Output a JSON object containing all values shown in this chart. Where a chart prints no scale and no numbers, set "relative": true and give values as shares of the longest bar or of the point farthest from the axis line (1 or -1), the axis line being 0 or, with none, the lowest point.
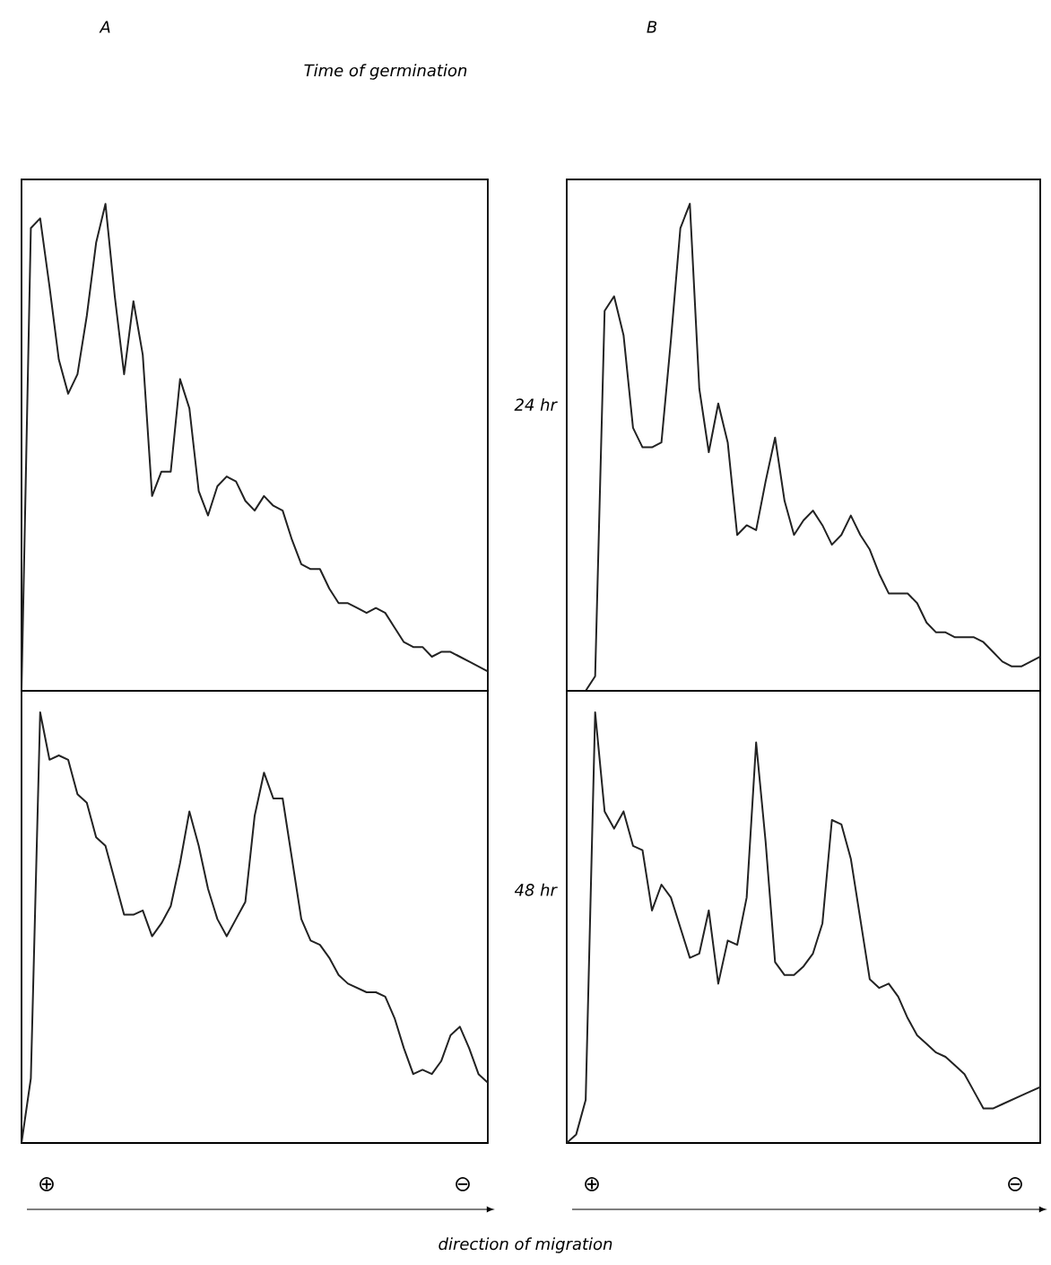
{
  "chart_data": [
    {
      "type": "line",
      "relative": true,
      "title": "A",
      "annotations": [
        "Time of germination"
      ],
      "color": "#222222",
      "categories": [
        null,
        null,
        null,
        null,
        null,
        null,
        null,
        null,
        null,
        null,
        null,
        null,
        null,
        null,
        null,
        null,
        null,
        null,
        null,
        null,
        null,
        null,
        null,
        null,
        null,
        null,
        null,
        null,
        null,
        null,
        null,
        null,
        null,
        null,
        null,
        null,
        null,
        null,
        null,
        null,
        null,
        null,
        null,
        null,
        null,
        null,
        null,
        null,
        null,
        null,
        null
      ],
      "values": [
        0,
        0.95,
        0.97,
        0.83,
        0.68,
        0.61,
        0.65,
        0.77,
        0.92,
        1.0,
        0.81,
        0.65,
        0.8,
        0.69,
        0.4,
        0.45,
        0.45,
        0.64,
        0.58,
        0.41,
        0.36,
        0.42,
        0.44,
        0.43,
        0.39,
        0.37,
        0.4,
        0.38,
        0.37,
        0.31,
        0.26,
        0.25,
        0.25,
        0.21,
        0.18,
        0.18,
        0.17,
        0.16,
        0.17,
        0.16,
        0.13,
        0.1,
        0.09,
        0.09,
        0.07,
        0.08,
        0.08,
        0.07,
        0.06,
        0.05,
        0.04
      ]
    },
    {
      "type": "line",
      "relative": true,
      "title": "B",
      "ylabel": "24 hr",
      "color": "#222222",
      "categories": [
        null,
        null,
        null,
        null,
        null,
        null,
        null,
        null,
        null,
        null,
        null,
        null,
        null,
        null,
        null,
        null,
        null,
        null,
        null,
        null,
        null,
        null,
        null,
        null,
        null,
        null,
        null,
        null,
        null,
        null,
        null,
        null,
        null,
        null,
        null,
        null,
        null,
        null,
        null,
        null,
        null,
        null,
        null,
        null,
        null,
        null,
        null,
        null,
        null,
        null,
        null
      ],
      "values": [
        0,
        0,
        0,
        0.03,
        0.78,
        0.81,
        0.73,
        0.54,
        0.5,
        0.5,
        0.51,
        0.72,
        0.95,
        1.0,
        0.62,
        0.49,
        0.59,
        0.51,
        0.32,
        0.34,
        0.33,
        0.43,
        0.52,
        0.39,
        0.32,
        0.35,
        0.37,
        0.34,
        0.3,
        0.32,
        0.36,
        0.32,
        0.29,
        0.24,
        0.2,
        0.2,
        0.2,
        0.18,
        0.14,
        0.12,
        0.12,
        0.11,
        0.11,
        0.11,
        0.1,
        0.08,
        0.06,
        0.05,
        0.05,
        0.06,
        0.07
      ]
    },
    {
      "type": "line",
      "relative": true,
      "xlabel": "direction of migration",
      "annotations": [
        "⊕",
        "⊖"
      ],
      "color": "#222222",
      "categories": [
        null,
        null,
        null,
        null,
        null,
        null,
        null,
        null,
        null,
        null,
        null,
        null,
        null,
        null,
        null,
        null,
        null,
        null,
        null,
        null,
        null,
        null,
        null,
        null,
        null,
        null,
        null,
        null,
        null,
        null,
        null,
        null,
        null,
        null,
        null,
        null,
        null,
        null,
        null,
        null,
        null,
        null,
        null,
        null,
        null,
        null,
        null,
        null,
        null,
        null,
        null
      ],
      "values": [
        0,
        0.15,
        1.0,
        0.89,
        0.9,
        0.89,
        0.81,
        0.79,
        0.71,
        0.69,
        0.61,
        0.53,
        0.53,
        0.54,
        0.48,
        0.51,
        0.55,
        0.65,
        0.77,
        0.69,
        0.59,
        0.52,
        0.48,
        0.52,
        0.56,
        0.76,
        0.86,
        0.8,
        0.8,
        0.66,
        0.52,
        0.47,
        0.46,
        0.43,
        0.39,
        0.37,
        0.36,
        0.35,
        0.35,
        0.34,
        0.29,
        0.22,
        0.16,
        0.17,
        0.16,
        0.19,
        0.25,
        0.27,
        0.22,
        0.16,
        0.14
      ]
    },
    {
      "type": "line",
      "relative": true,
      "ylabel": "48 hr",
      "annotations": [
        "⊕",
        "⊖"
      ],
      "color": "#222222",
      "categories": [
        null,
        null,
        null,
        null,
        null,
        null,
        null,
        null,
        null,
        null,
        null,
        null,
        null,
        null,
        null,
        null,
        null,
        null,
        null,
        null,
        null,
        null,
        null,
        null,
        null,
        null,
        null,
        null,
        null,
        null,
        null,
        null,
        null,
        null,
        null,
        null,
        null,
        null,
        null,
        null,
        null,
        null,
        null,
        null,
        null,
        null,
        null,
        null,
        null,
        null,
        null
      ],
      "values": [
        0,
        0.02,
        0.1,
        1.0,
        0.77,
        0.73,
        0.77,
        0.69,
        0.68,
        0.54,
        0.6,
        0.57,
        0.5,
        0.43,
        0.44,
        0.54,
        0.37,
        0.47,
        0.46,
        0.57,
        0.93,
        0.7,
        0.42,
        0.39,
        0.39,
        0.41,
        0.44,
        0.51,
        0.75,
        0.74,
        0.66,
        0.52,
        0.38,
        0.36,
        0.37,
        0.34,
        0.29,
        0.25,
        0.23,
        0.21,
        0.2,
        0.18,
        0.16,
        0.12,
        0.08,
        0.08,
        0.09,
        0.1,
        0.11,
        0.12,
        0.13
      ]
    }
  ]
}
